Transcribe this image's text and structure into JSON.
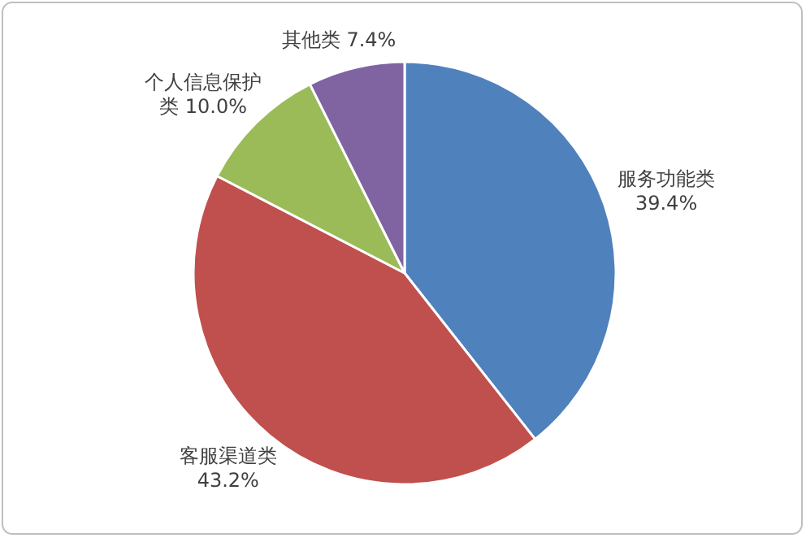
{
  "chart_data": {
    "type": "pie",
    "categories": [
      "服务功能类",
      "客服渠道类",
      "个人信息保护类",
      "其他类"
    ],
    "values": [
      39.4,
      43.2,
      10.0,
      7.4
    ],
    "colors": [
      "#4f81bd",
      "#c0504d",
      "#9bbb59",
      "#8064a2"
    ],
    "value_labels": [
      "39.4%",
      "43.2%",
      "10.0%",
      "7.4%"
    ]
  }
}
